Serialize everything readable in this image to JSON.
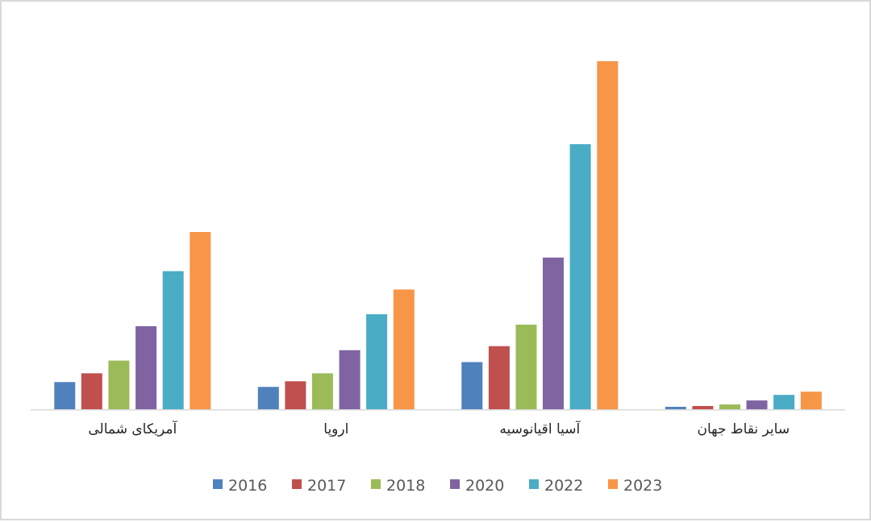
{
  "chart_data": {
    "type": "bar",
    "title": "",
    "xlabel": "",
    "ylabel": "",
    "categories": [
      "آمریکای شمالی",
      "اروپا",
      "آسیا اقیانوسیه",
      "سایر نقاط جهان"
    ],
    "series": [
      {
        "name": "2016",
        "color": "#4f81bd",
        "values": [
          34,
          28,
          59,
          3
        ]
      },
      {
        "name": "2017",
        "color": "#c0504d",
        "values": [
          45,
          35,
          79,
          4
        ]
      },
      {
        "name": "2018",
        "color": "#9bbb59",
        "values": [
          61,
          45,
          106,
          6
        ]
      },
      {
        "name": "2020",
        "color": "#8064a2",
        "values": [
          104,
          74,
          190,
          11
        ]
      },
      {
        "name": "2022",
        "color": "#4bacc6",
        "values": [
          173,
          119,
          332,
          18
        ]
      },
      {
        "name": "2023",
        "color": "#f79646",
        "values": [
          222,
          150,
          436,
          22
        ]
      }
    ],
    "ylim": [
      0,
      440
    ],
    "grid": false,
    "legend_position": "bottom"
  }
}
